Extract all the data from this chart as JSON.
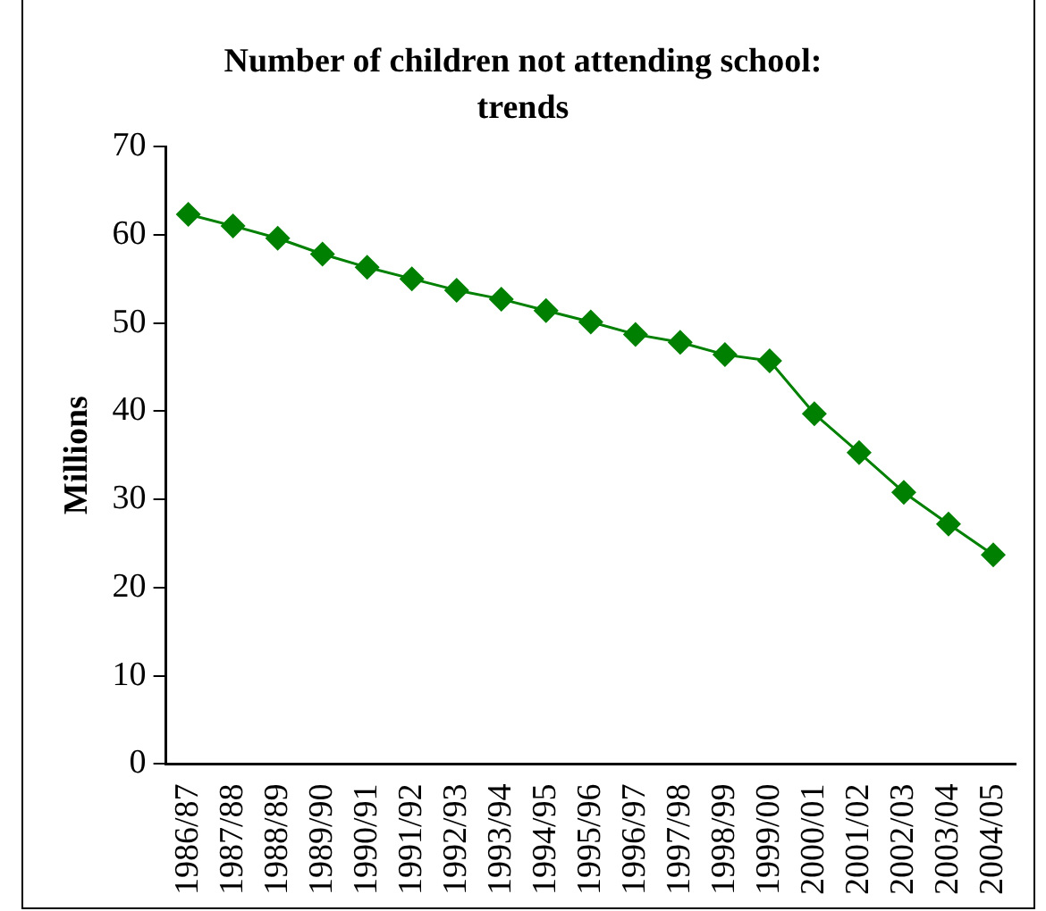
{
  "chart_data": {
    "type": "line",
    "title": "Number of children not attending school: trends",
    "ylabel": "Millions",
    "categories": [
      "1986/87",
      "1987/88",
      "1988/89",
      "1989/90",
      "1990/91",
      "1991/92",
      "1992/93",
      "1993/94",
      "1994/95",
      "1995/96",
      "1996/97",
      "1997/98",
      "1998/99",
      "1999/00",
      "2000/01",
      "2001/02",
      "2002/03",
      "2003/04",
      "2004/05"
    ],
    "series": [
      {
        "color": "#008000",
        "values": [
          62.3,
          61.0,
          59.6,
          57.8,
          56.3,
          55.0,
          53.7,
          52.7,
          51.4,
          50.1,
          48.7,
          47.8,
          46.4,
          45.7,
          39.7,
          35.3,
          30.8,
          27.2,
          23.7
        ]
      }
    ],
    "ylim": [
      0,
      70
    ],
    "yticks": [
      0,
      10,
      20,
      30,
      40,
      50,
      60,
      70
    ],
    "grid": false,
    "legend": false,
    "marker": "diamond",
    "line_style": "solid"
  }
}
